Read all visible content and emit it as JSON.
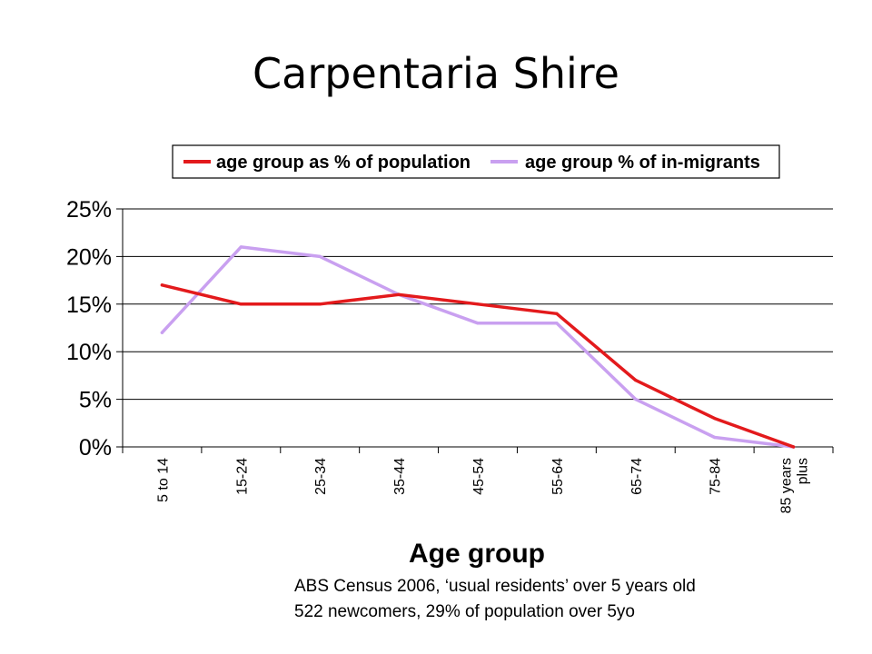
{
  "slide": {
    "title": "Carpentaria Shire",
    "footnote_lines": [
      "ABS Census 2006, ‘usual residents’ over 5 years old",
      "522 newcomers, 29% of population over 5yo"
    ]
  },
  "chart_data": {
    "type": "line",
    "title": "",
    "xlabel": "Age group",
    "ylabel": "",
    "categories": [
      "5 to 14",
      "15-24",
      "25-34",
      "35-44",
      "45-54",
      "55-64",
      "65-74",
      "75-84",
      "85 years plus"
    ],
    "category_label_lines": [
      [
        "5 to 14"
      ],
      [
        "15-24"
      ],
      [
        "25-34"
      ],
      [
        "35-44"
      ],
      [
        "45-54"
      ],
      [
        "55-64"
      ],
      [
        "65-74"
      ],
      [
        "75-84"
      ],
      [
        "85 years",
        "plus"
      ]
    ],
    "series": [
      {
        "name": "age group as % of population",
        "color": "#e31a1c",
        "values": [
          17,
          15,
          15,
          16,
          15,
          14,
          7,
          3,
          0
        ]
      },
      {
        "name": "age group % of in-migrants",
        "color": "#c9a0f0",
        "values": [
          12,
          21,
          20,
          16,
          13,
          13,
          5,
          1,
          0
        ]
      }
    ],
    "ylim": [
      0,
      25
    ],
    "y_ticks": [
      0,
      5,
      10,
      15,
      20,
      25
    ],
    "y_tick_labels": [
      "0%",
      "5%",
      "10%",
      "15%",
      "20%",
      "25%"
    ],
    "grid": true,
    "legend_position": "top"
  }
}
